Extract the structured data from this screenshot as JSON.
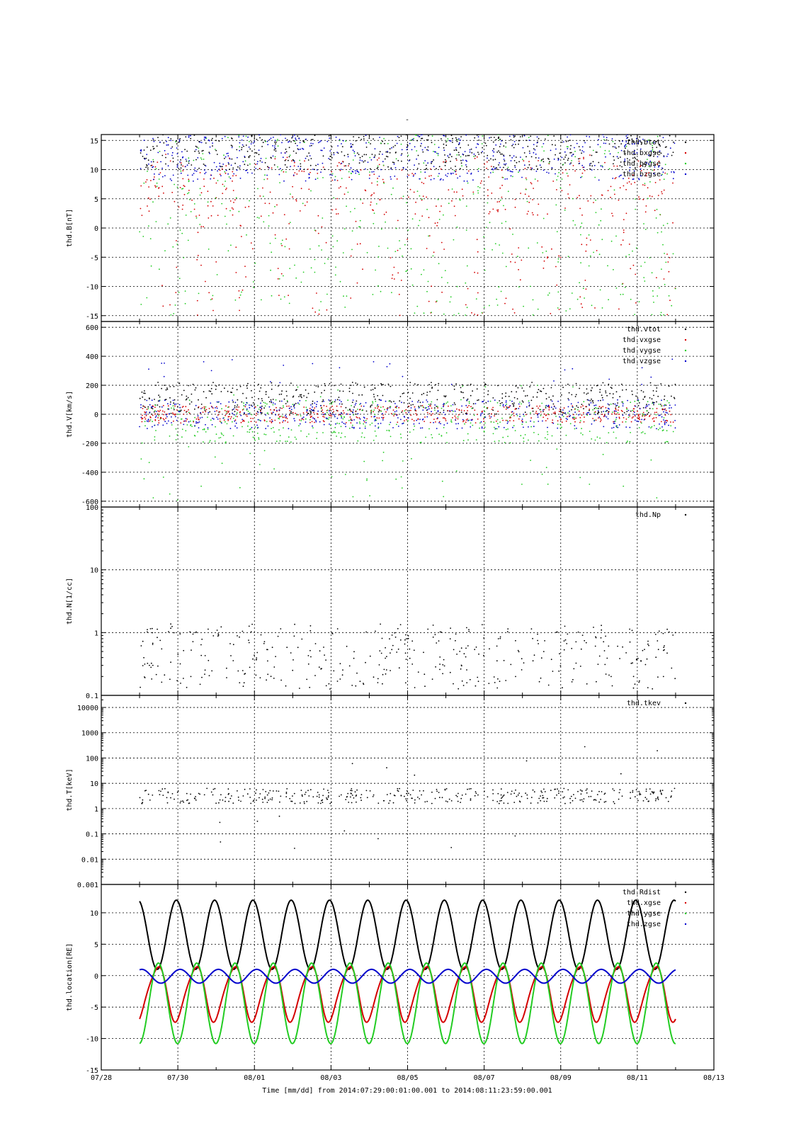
{
  "figure": {
    "title": "-",
    "xlabel": "Time [mm/dd]  from 2014:07:29:00:01:00.001  to  2014:08:11:23:59:00.001"
  },
  "colors": {
    "black": "#000000",
    "red": "#d40000",
    "green": "#22cc22",
    "blue": "#0000cc"
  },
  "chart_data": [
    {
      "type": "scatter",
      "ylabel": "thd.B[nT]",
      "ylim": [
        -16,
        16
      ],
      "yscale": "linear",
      "yticks": [
        -15,
        -10,
        -5,
        0,
        5,
        10,
        15
      ],
      "xlim_days": [
        0,
        16
      ],
      "xticks": [
        "07/28",
        "07/30",
        "08/01",
        "08/03",
        "08/05",
        "08/07",
        "08/09",
        "08/11",
        "08/13"
      ],
      "grid": true,
      "legend_position": "top-right",
      "series": [
        {
          "name": "thd.btot",
          "color": "#000000"
        },
        {
          "name": "thd.bxgse",
          "color": "#d40000"
        },
        {
          "name": "thd.bygse",
          "color": "#22cc22"
        },
        {
          "name": "thd.bzgse",
          "color": "#0000cc"
        }
      ]
    },
    {
      "type": "scatter",
      "ylabel": "thd.V[km/s]",
      "ylim": [
        -640,
        640
      ],
      "yscale": "linear",
      "yticks": [
        -600,
        -400,
        -200,
        0,
        200,
        400,
        600
      ],
      "grid": true,
      "legend_position": "top-right",
      "series": [
        {
          "name": "thd.vtot",
          "color": "#000000"
        },
        {
          "name": "thd.vxgse",
          "color": "#d40000"
        },
        {
          "name": "thd.vygse",
          "color": "#22cc22"
        },
        {
          "name": "thd.vzgse",
          "color": "#0000cc"
        }
      ]
    },
    {
      "type": "scatter",
      "ylabel": "thd.N[1/cc]",
      "ylim": [
        0.1,
        100
      ],
      "yscale": "log",
      "yticks": [
        0.1,
        1,
        10,
        100
      ],
      "ytick_labels": [
        "0.1",
        "1",
        "10",
        "100"
      ],
      "grid": true,
      "legend_position": "top-right",
      "series": [
        {
          "name": "thd.Np",
          "color": "#000000"
        }
      ]
    },
    {
      "type": "scatter",
      "ylabel": "thd.T[keV]",
      "ylim": [
        0.001,
        30000
      ],
      "yscale": "log",
      "yticks": [
        0.001,
        0.01,
        0.1,
        1,
        10,
        100,
        1000,
        10000
      ],
      "ytick_labels": [
        "0.001",
        "0.01",
        "0.1",
        "1",
        "10",
        "100",
        "1000",
        "10000"
      ],
      "grid": true,
      "legend_position": "top-right",
      "series": [
        {
          "name": "thd.tkev",
          "color": "#000000"
        }
      ]
    },
    {
      "type": "line",
      "ylabel": "thd.location[RE]",
      "ylim": [
        -15,
        14.5
      ],
      "yscale": "linear",
      "yticks": [
        -15,
        -10,
        -5,
        0,
        5,
        10
      ],
      "grid": true,
      "legend_position": "top-right",
      "orbit_period_days": 1.0,
      "series": [
        {
          "name": "thd.Rdist",
          "color": "#000000",
          "min": 1.0,
          "max": 12.0
        },
        {
          "name": "thd.xgse",
          "color": "#d40000",
          "min": -7.5,
          "max": 2.0
        },
        {
          "name": "thd.ygse",
          "color": "#22cc22",
          "min": -10.8,
          "max": 2.0
        },
        {
          "name": "thd.zgse",
          "color": "#0000cc",
          "min": -1.2,
          "max": 1.0
        }
      ]
    }
  ]
}
